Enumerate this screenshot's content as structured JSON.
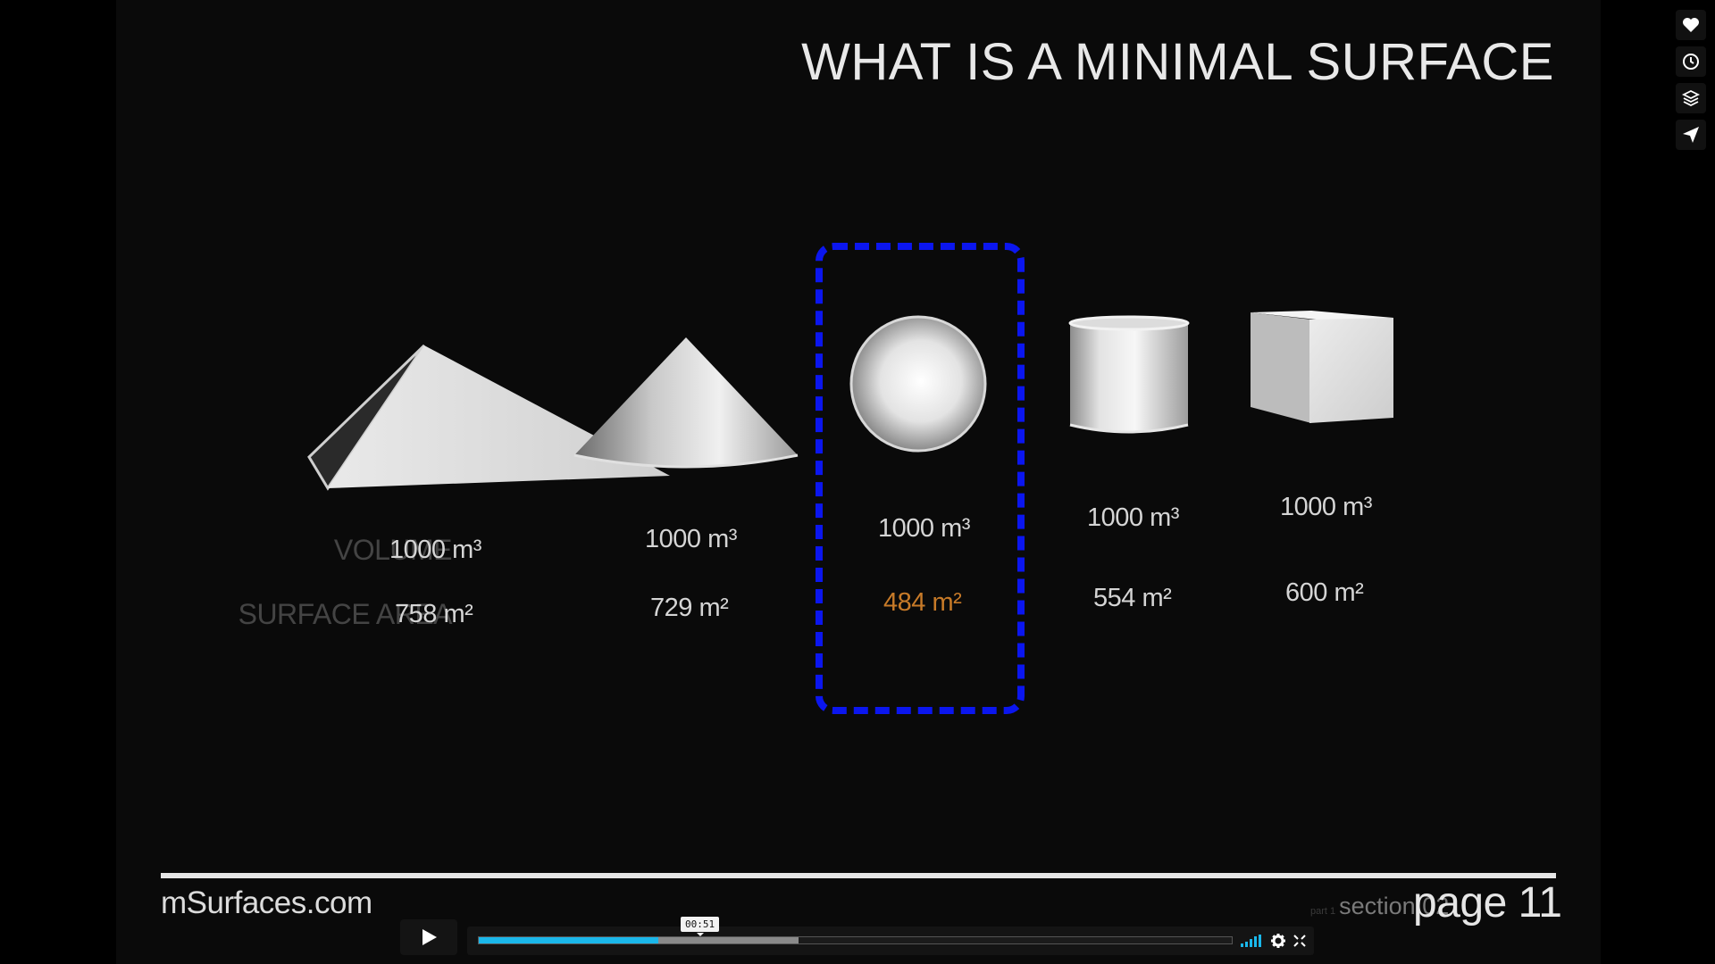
{
  "slide": {
    "title": "WHAT IS A MINIMAL SURFACE",
    "volume_label": "VOLUME",
    "surface_label": "SURFACE AREA",
    "shapes": [
      {
        "name": "pyramid",
        "volume": "1000 m³",
        "area": "758 m²"
      },
      {
        "name": "cone",
        "volume": "1000 m³",
        "area": "729 m²"
      },
      {
        "name": "sphere",
        "volume": "1000 m³",
        "area": "484 m²",
        "highlight": true
      },
      {
        "name": "cylinder",
        "volume": "1000 m³",
        "area": "554 m²"
      },
      {
        "name": "cube",
        "volume": "1000 m³",
        "area": "600 m²"
      }
    ],
    "footer": {
      "site": "mSurfaces.com",
      "section_prefix": "part 1",
      "section": "section 02",
      "page": "page 11"
    },
    "colors": {
      "highlight_value": "#c77a28",
      "selection_dash": "#0b16ef"
    }
  },
  "player": {
    "timecode": "00:51",
    "played_fraction": 0.238,
    "buffered_fraction": 0.425,
    "accent_color": "#1ab7ea",
    "icons": [
      "play-icon",
      "volume-bars-icon",
      "gear-icon",
      "fullscreen-icon"
    ]
  },
  "sidebar_icons": [
    "heart-icon",
    "clock-icon",
    "layers-icon",
    "send-icon"
  ]
}
